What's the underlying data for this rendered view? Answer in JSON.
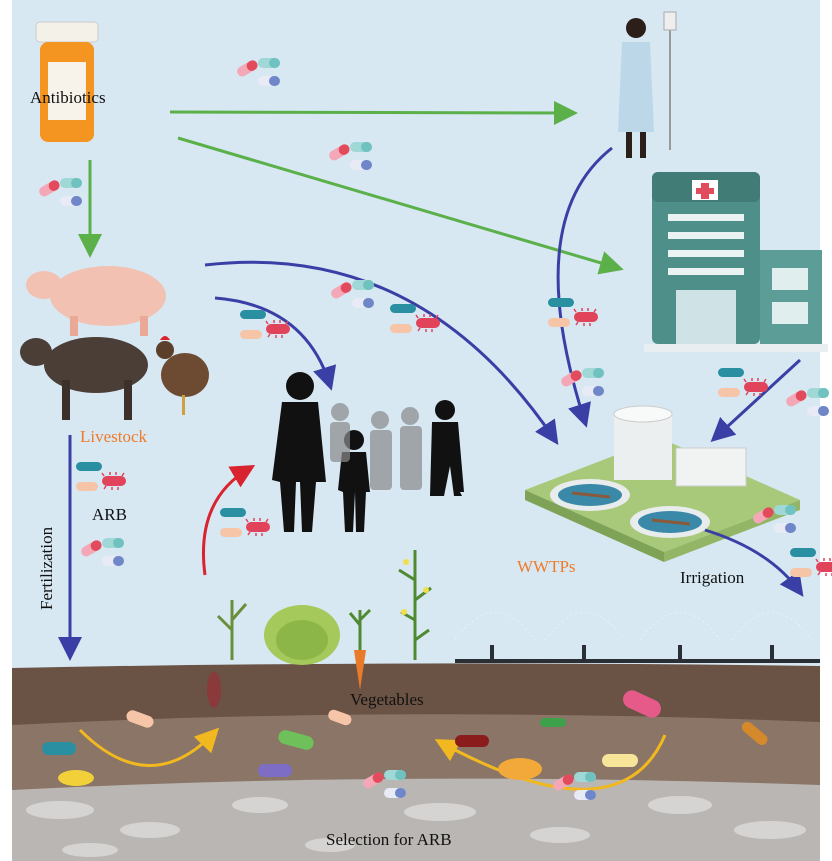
{
  "labels": {
    "antibiotics": "Antibiotics",
    "livestock": "Livestock",
    "arb": "ARB",
    "fertilization": "Fertilization",
    "wwtps": "WWTPs",
    "irrigation": "Irrigation",
    "vegetables": "Vegetables",
    "selection": "Selection for ARB"
  }
}
